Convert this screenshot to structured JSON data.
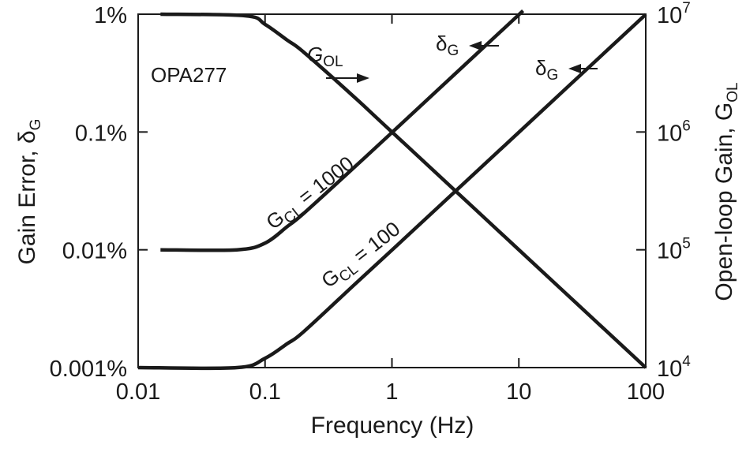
{
  "chart_data": {
    "type": "line",
    "x_scale": "log",
    "y_scale": "log",
    "xlabel": "Frequency (Hz)",
    "xlim": [
      0.01,
      100
    ],
    "x_ticks": [
      "0.01",
      "0.1",
      "1",
      "10",
      "100"
    ],
    "y_left": {
      "label_main": "Gain Error, δ",
      "label_sub": "G",
      "lim_percent": [
        0.001,
        1
      ],
      "ticks": [
        "0.001%",
        "0.01%",
        "0.1%",
        "1%"
      ]
    },
    "y_right": {
      "label_main": "Open-loop Gain, G",
      "label_sub": "OL",
      "lim": [
        10000,
        10000000
      ],
      "ticks": [
        {
          "base": "10",
          "exp": "4"
        },
        {
          "base": "10",
          "exp": "5"
        },
        {
          "base": "10",
          "exp": "6"
        },
        {
          "base": "10",
          "exp": "7"
        }
      ]
    },
    "grid": false,
    "device_label": "OPA277",
    "series": [
      {
        "axis": "right",
        "x": [
          0.015,
          0.07,
          0.1,
          0.15,
          0.2,
          0.5,
          1,
          10,
          100
        ],
        "y": [
          10000000,
          9700000,
          8200000,
          6000000,
          4800000,
          2000000,
          1000000,
          100000,
          10000
        ]
      },
      {
        "axis": "left",
        "x": [
          0.015,
          0.06,
          0.1,
          0.15,
          0.2,
          0.5,
          1,
          10.8
        ],
        "y": [
          0.01,
          0.01,
          0.0114,
          0.0158,
          0.0202,
          0.0497,
          0.099,
          1.07
        ]
      },
      {
        "axis": "left",
        "x": [
          0.01,
          0.06,
          0.1,
          0.15,
          0.2,
          0.5,
          1,
          10,
          100
        ],
        "y": [
          0.001,
          0.001,
          0.0012,
          0.0016,
          0.002,
          0.005,
          0.00995,
          0.0995,
          0.995
        ]
      }
    ],
    "annotations": [
      {
        "main": "G",
        "sub": "OL",
        "arrow": "right"
      },
      {
        "main": "δ",
        "sub": "G",
        "arrow": "left"
      },
      {
        "main": "δ",
        "sub": "G",
        "arrow": "left"
      },
      {
        "main": "G",
        "sub": "CL",
        "rest": " = 1000"
      },
      {
        "main": "G",
        "sub": "CL",
        "rest": " = 100"
      }
    ]
  }
}
